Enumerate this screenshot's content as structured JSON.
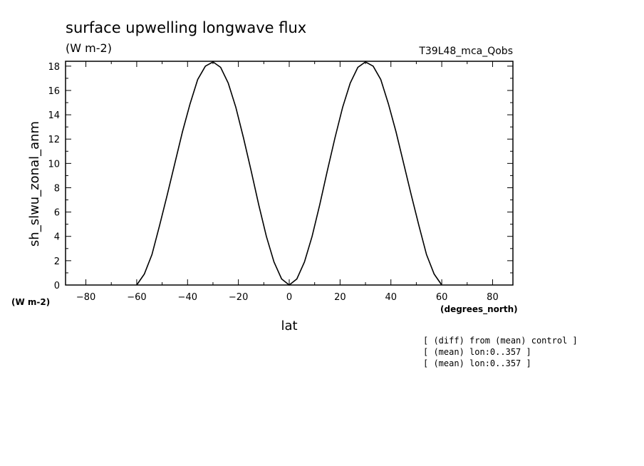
{
  "chart_data": {
    "type": "line",
    "title": "surface upwelling longwave flux",
    "subtitle": "(W m-2)",
    "run_label": "T39L48_mca_Qobs",
    "ylabel": "sh_slwu_zonal_anm",
    "yunit": "(W m-2)",
    "xlabel": "lat",
    "xunit": "(degrees_north)",
    "xlim": [
      -88,
      88
    ],
    "ylim": [
      0,
      18.4
    ],
    "xticks": [
      -80,
      -60,
      -40,
      -20,
      0,
      20,
      40,
      60,
      80
    ],
    "yticks": [
      0,
      2,
      4,
      6,
      8,
      10,
      12,
      14,
      16,
      18
    ],
    "notes": [
      "[ (diff) from (mean) control ]",
      "[ (mean) lon:0..357 ]",
      "[ (mean) lon:0..357 ]"
    ],
    "grid": false,
    "series": [
      {
        "x": [
          -60,
          -57,
          -54,
          -51,
          -48,
          -45,
          -42,
          -39,
          -36,
          -33,
          -30,
          -27,
          -24,
          -21,
          -18,
          -15,
          -12,
          -9,
          -6,
          -3,
          0,
          3,
          6,
          9,
          12,
          15,
          18,
          21,
          24,
          27,
          30,
          33,
          36,
          39,
          42,
          45,
          48,
          51,
          54,
          57,
          60
        ],
        "y": [
          0.0,
          0.9,
          2.5,
          4.9,
          7.4,
          10.0,
          12.6,
          14.9,
          16.9,
          18.0,
          18.35,
          17.9,
          16.6,
          14.6,
          12.1,
          9.4,
          6.6,
          4.0,
          1.9,
          0.5,
          0.0,
          0.5,
          1.9,
          4.0,
          6.6,
          9.4,
          12.1,
          14.6,
          16.6,
          17.9,
          18.35,
          18.0,
          16.9,
          14.9,
          12.6,
          10.0,
          7.4,
          4.9,
          2.5,
          0.9,
          0.0
        ]
      }
    ]
  }
}
